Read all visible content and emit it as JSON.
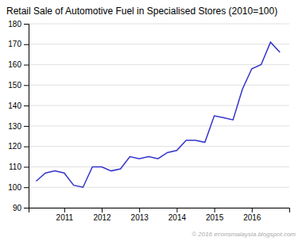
{
  "chart_data": {
    "type": "line",
    "title": "Retail Sale of Automotive Fuel in Specialised Stores (2010=100)",
    "annotations": [
      "© 2016 econsmalaysia.blogspot.com"
    ],
    "x": [
      2010.25,
      2010.5,
      2010.75,
      2011.0,
      2011.25,
      2011.5,
      2011.75,
      2012.0,
      2012.25,
      2012.5,
      2012.75,
      2013.0,
      2013.25,
      2013.5,
      2013.75,
      2014.0,
      2014.25,
      2014.5,
      2014.75,
      2015.0,
      2015.25,
      2015.5,
      2015.75,
      2016.0,
      2016.25,
      2016.5,
      2016.75
    ],
    "values": [
      103,
      107,
      108,
      107,
      101,
      100,
      110,
      110,
      108,
      109,
      115,
      114,
      115,
      114,
      117,
      118,
      123,
      123,
      122,
      135,
      134,
      133,
      148,
      158,
      160,
      171,
      166
    ],
    "color": "#3333cc",
    "xlim": [
      2010.05,
      2017.0
    ],
    "xticks": [
      2011,
      2012,
      2013,
      2014,
      2015,
      2016
    ],
    "ylim": [
      90,
      180
    ],
    "yticks": [
      90,
      100,
      110,
      120,
      130,
      140,
      150,
      160,
      170,
      180
    ],
    "grid": true
  }
}
